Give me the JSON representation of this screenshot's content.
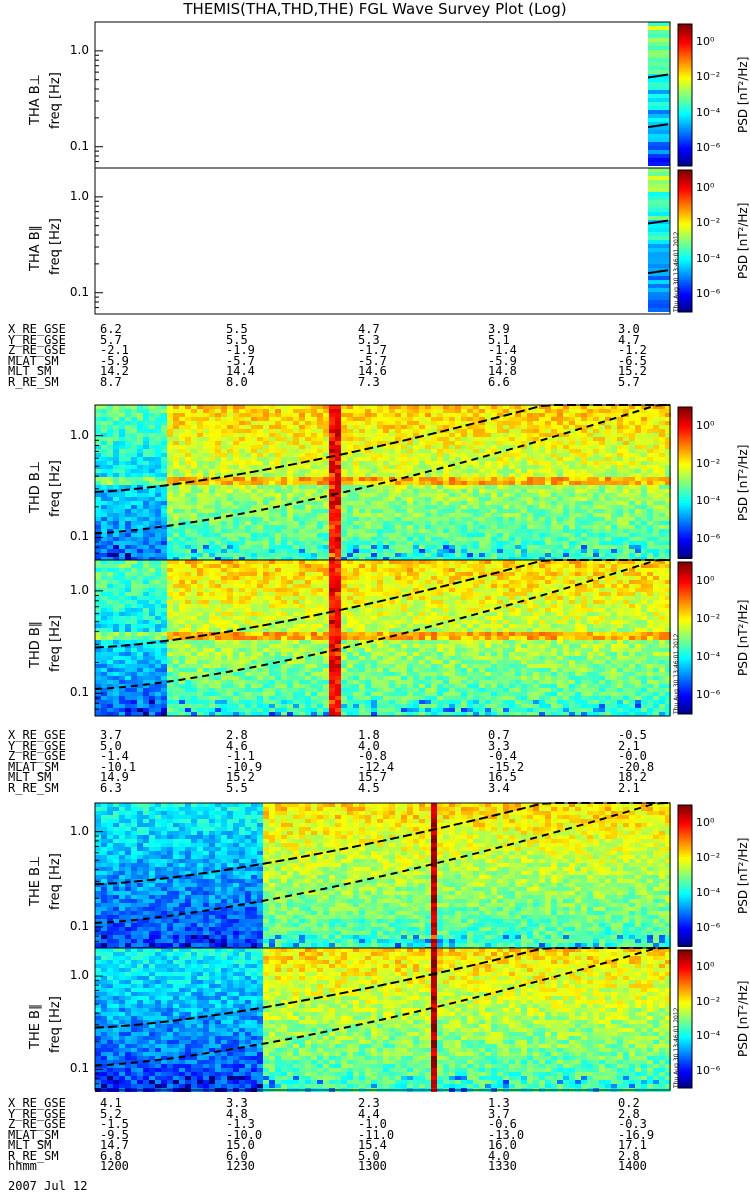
{
  "title": "THEMIS(THA,THD,THE) FGL Wave Survey Plot (Log)",
  "stamp": "Thu Aug 30 13:46:01 2012",
  "colorbar": {
    "label": "PSD [nT²/Hz]",
    "ticks": [
      "10⁰",
      "10⁻²",
      "10⁻⁴",
      "10⁻⁶"
    ],
    "exponents": [
      0,
      -2,
      -4,
      -6
    ]
  },
  "chart_data": [
    {
      "type": "heatmap",
      "probe": "THA",
      "component": "B⊥",
      "ylabel": "THA B⊥",
      "yunit": "freq [Hz]",
      "yticks": [
        "1.0",
        "0.1"
      ],
      "ylim": [
        0.06,
        2.0
      ],
      "yscale": "log",
      "zscale": "log",
      "zlim": [
        "1e-6",
        "1e1"
      ]
    },
    {
      "type": "heatmap",
      "probe": "THA",
      "component": "B∥",
      "ylabel": "THA B∥",
      "yunit": "freq [Hz]",
      "yticks": [
        "1.0",
        "0.1"
      ],
      "ylim": [
        0.06,
        2.0
      ],
      "yscale": "log",
      "zscale": "log",
      "zlim": [
        "1e-6",
        "1e1"
      ]
    },
    {
      "type": "heatmap",
      "probe": "THD",
      "component": "B⊥",
      "ylabel": "THD B⊥",
      "yunit": "freq [Hz]",
      "yticks": [
        "1.0",
        "0.1"
      ],
      "ylim": [
        0.06,
        2.0
      ],
      "yscale": "log",
      "zscale": "log",
      "zlim": [
        "1e-6",
        "1e1"
      ]
    },
    {
      "type": "heatmap",
      "probe": "THD",
      "component": "B∥",
      "ylabel": "THD B∥",
      "yunit": "freq [Hz]",
      "yticks": [
        "1.0",
        "0.1"
      ],
      "ylim": [
        0.06,
        2.0
      ],
      "yscale": "log",
      "zscale": "log",
      "zlim": [
        "1e-6",
        "1e1"
      ]
    },
    {
      "type": "heatmap",
      "probe": "THE",
      "component": "B⊥",
      "ylabel": "THE B⊥",
      "yunit": "freq [Hz]",
      "yticks": [
        "1.0",
        "0.1"
      ],
      "ylim": [
        0.06,
        2.0
      ],
      "yscale": "log",
      "zscale": "log",
      "zlim": [
        "1e-6",
        "1e1"
      ]
    },
    {
      "type": "heatmap",
      "probe": "THE",
      "component": "B∥",
      "ylabel": "THE B∥",
      "yunit": "freq [Hz]",
      "yticks": [
        "1.0",
        "0.1"
      ],
      "ylim": [
        0.06,
        2.0
      ],
      "yscale": "log",
      "zscale": "log",
      "zlim": [
        "1e-6",
        "1e1"
      ]
    }
  ],
  "ephemeris": {
    "tha": {
      "labels": [
        "X_RE_GSE",
        "Y_RE_GSE",
        "Z_RE_GSE",
        "MLAT_SM",
        "MLT_SM",
        "R_RE_SM"
      ],
      "rows": [
        [
          "6.2",
          "5.5",
          "4.7",
          "3.9",
          "3.0"
        ],
        [
          "5.7",
          "5.5",
          "5.3",
          "5.1",
          "4.7"
        ],
        [
          "-2.1",
          "-1.9",
          "-1.7",
          "-1.4",
          "-1.2"
        ],
        [
          "-5.9",
          "-5.7",
          "-5.7",
          "-5.9",
          "-6.5"
        ],
        [
          "14.2",
          "14.4",
          "14.6",
          "14.8",
          "15.2"
        ],
        [
          "8.7",
          "8.0",
          "7.3",
          "6.6",
          "5.7"
        ]
      ]
    },
    "thd": {
      "labels": [
        "X_RE_GSE",
        "Y_RE_GSE",
        "Z_RE_GSE",
        "MLAT_SM",
        "MLT_SM",
        "R_RE_SM"
      ],
      "rows": [
        [
          "3.7",
          "2.8",
          "1.8",
          "0.7",
          "-0.5"
        ],
        [
          "5.0",
          "4.6",
          "4.0",
          "3.3",
          "2.1"
        ],
        [
          "-1.4",
          "-1.1",
          "-0.8",
          "-0.4",
          "-0.0"
        ],
        [
          "-10.1",
          "-10.9",
          "-12.4",
          "-15.2",
          "-20.8"
        ],
        [
          "14.9",
          "15.2",
          "15.7",
          "16.5",
          "18.2"
        ],
        [
          "6.3",
          "5.5",
          "4.5",
          "3.4",
          "2.1"
        ]
      ]
    },
    "the": {
      "labels": [
        "X_RE_GSE",
        "Y_RE_GSE",
        "Z_RE_GSE",
        "MLAT_SM",
        "MLT_SM",
        "R_RE_SM",
        "hhmm"
      ],
      "rows": [
        [
          "4.1",
          "3.3",
          "2.3",
          "1.3",
          "0.2"
        ],
        [
          "5.2",
          "4.8",
          "4.4",
          "3.7",
          "2.8"
        ],
        [
          "-1.5",
          "-1.3",
          "-1.0",
          "-0.6",
          "-0.3"
        ],
        [
          "-9.5",
          "-10.0",
          "-11.0",
          "-13.0",
          "-16.9"
        ],
        [
          "14.7",
          "15.0",
          "15.4",
          "16.0",
          "17.1"
        ],
        [
          "6.8",
          "6.0",
          "5.0",
          "4.0",
          "2.8"
        ],
        [
          "1200",
          "1230",
          "1300",
          "1330",
          "1400"
        ]
      ]
    },
    "date": "2007 Jul 12"
  }
}
